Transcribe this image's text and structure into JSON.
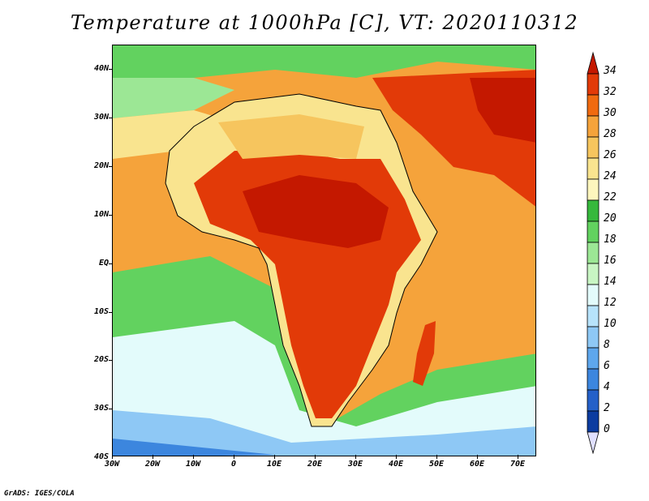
{
  "title": "Temperature at 1000hPa [C], VT: 2020110312",
  "lat_labels": [
    "40N",
    "30N",
    "20N",
    "10N",
    "EQ",
    "10S",
    "20S",
    "30S",
    "40S"
  ],
  "lon_labels": [
    "30W",
    "20W",
    "10W",
    "0",
    "10E",
    "20E",
    "30E",
    "40E",
    "50E",
    "60E",
    "70E"
  ],
  "colorbar": {
    "labels": [
      "34",
      "32",
      "30",
      "28",
      "26",
      "24",
      "22",
      "20",
      "18",
      "16",
      "14",
      "12",
      "10",
      "8",
      "6",
      "4",
      "2",
      "0"
    ],
    "colors": [
      "#c41800",
      "#e23a08",
      "#f06a10",
      "#f5a33b",
      "#f6c55e",
      "#f9e48f",
      "#fdf6bd",
      "#36b83c",
      "#62d25f",
      "#9ce795",
      "#c8f5c3",
      "#e3fbfb",
      "#b7e3fb",
      "#8ec8f5",
      "#5ea7ed",
      "#3c86de",
      "#2460c8",
      "#0c3ca0",
      "#001d6b"
    ]
  },
  "credit": "GrADS: IGES/COLA"
}
